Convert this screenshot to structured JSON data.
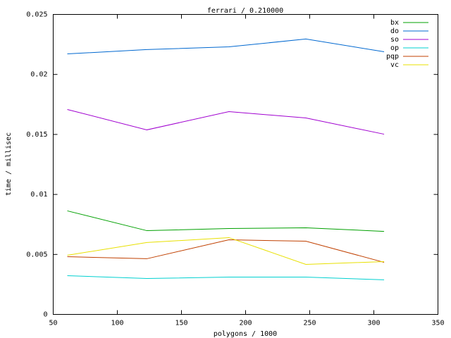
{
  "chart_data": {
    "type": "line",
    "title": "ferrari / 0.210000",
    "x_label": "polygons / 1000",
    "y_label": "time / millisec",
    "x": [
      61,
      123,
      187,
      247,
      308
    ],
    "series": [
      {
        "name": "bx",
        "color": "#00a000",
        "values": [
          0.00863,
          0.00698,
          0.00716,
          0.00722,
          0.00692
        ]
      },
      {
        "name": "do",
        "color": "#0068d0",
        "values": [
          0.02171,
          0.02207,
          0.0223,
          0.02295,
          0.02189
        ]
      },
      {
        "name": "so",
        "color": "#a000d0",
        "values": [
          0.01708,
          0.01538,
          0.0169,
          0.01637,
          0.01502
        ]
      },
      {
        "name": "op",
        "color": "#00d0d0",
        "values": [
          0.00323,
          0.00299,
          0.00311,
          0.00311,
          0.00288
        ]
      },
      {
        "name": "pqp",
        "color": "#c04000",
        "values": [
          0.00481,
          0.00464,
          0.00622,
          0.0061,
          0.00434
        ]
      },
      {
        "name": "vc",
        "color": "#e8e000",
        "values": [
          0.00493,
          0.00599,
          0.0064,
          0.00417,
          0.0044
        ]
      }
    ],
    "xlim": [
      50,
      350
    ],
    "xticks": [
      50,
      100,
      150,
      200,
      250,
      300,
      350
    ],
    "ylim": [
      0,
      0.025
    ],
    "yticks": [
      0,
      0.005,
      0.01,
      0.015,
      0.02,
      0.025
    ],
    "grid": false,
    "legend": "top-right"
  }
}
